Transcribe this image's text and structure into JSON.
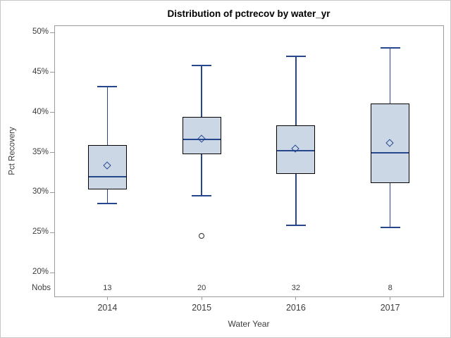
{
  "chart_data": {
    "type": "box",
    "title": "Distribution of pctrecov by water_yr",
    "xlabel": "Water Year",
    "ylabel": "Pct Recovery",
    "nobs_label": "Nobs",
    "ylim": [
      20,
      50
    ],
    "ytick_values": [
      50,
      45,
      40,
      35,
      30,
      25,
      20
    ],
    "ytick_labels": [
      "50%",
      "45%",
      "40%",
      "35%",
      "30%",
      "25%",
      "20%"
    ],
    "categories": [
      "2014",
      "2015",
      "2016",
      "2017"
    ],
    "grid": false,
    "legend": false,
    "groups": [
      {
        "category": "2014",
        "nobs": "13",
        "whisker_low": 28.6,
        "q1": 30.4,
        "median": 32.0,
        "mean": 33.3,
        "q3": 35.9,
        "whisker_high": 43.2,
        "outliers": []
      },
      {
        "category": "2015",
        "nobs": "20",
        "whisker_low": 29.6,
        "q1": 34.8,
        "median": 36.6,
        "mean": 36.7,
        "q3": 39.4,
        "whisker_high": 45.9,
        "outliers": [
          24.6
        ]
      },
      {
        "category": "2016",
        "nobs": "32",
        "whisker_low": 25.9,
        "q1": 32.3,
        "median": 35.2,
        "mean": 35.4,
        "q3": 38.4,
        "whisker_high": 47.0,
        "outliers": []
      },
      {
        "category": "2017",
        "nobs": "8",
        "whisker_low": 25.6,
        "q1": 31.2,
        "median": 35.0,
        "mean": 36.1,
        "q3": 41.1,
        "whisker_high": 48.1,
        "outliers": []
      }
    ]
  },
  "colors": {
    "box_fill": "#ccd7e6",
    "box_border": "#000000",
    "line": "#26478d",
    "outlier": "#2b2b2b",
    "wall_border": "#9b9b9b",
    "frame": "#c6c6c6",
    "text": "#3c3c3c",
    "title_text": "#000000"
  }
}
